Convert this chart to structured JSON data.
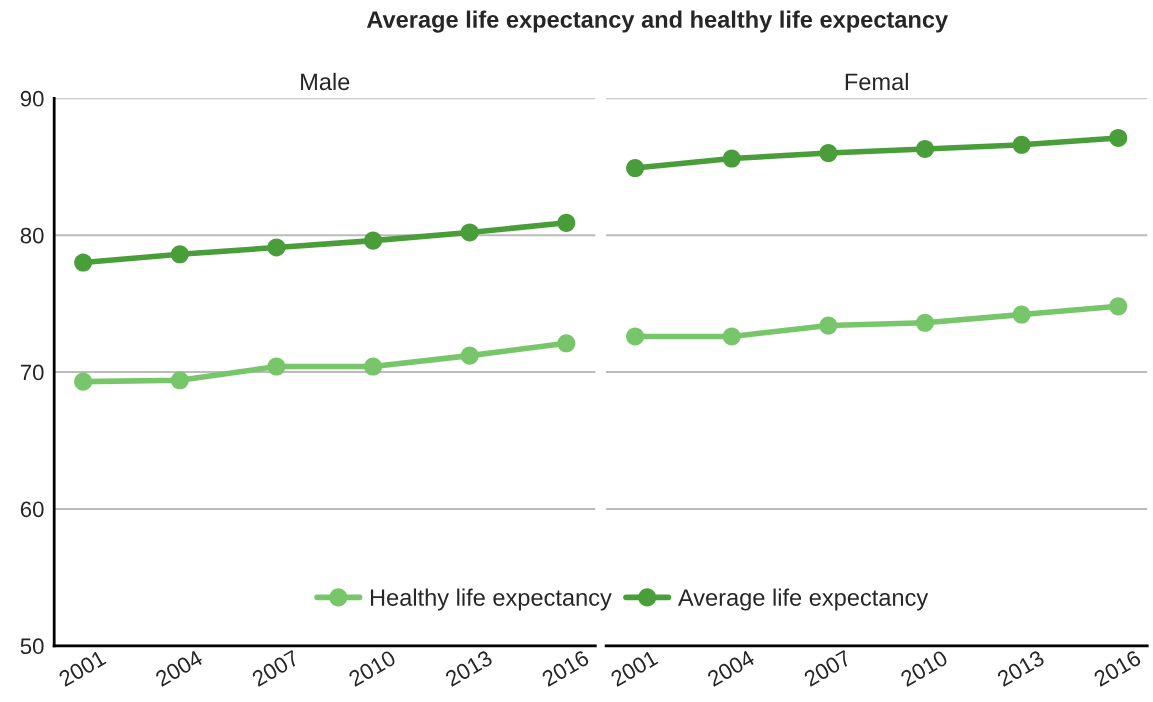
{
  "chart_data": [
    {
      "type": "line",
      "title": "Average life expectancy and healthy life expectancy",
      "subtitle": "Male",
      "categories": [
        "2001",
        "2004",
        "2007",
        "2010",
        "2013",
        "2016"
      ],
      "series": [
        {
          "name": "Healthy life expectancy",
          "color": "#77c66a",
          "values": [
            69.3,
            69.4,
            70.4,
            70.4,
            71.2,
            72.1
          ]
        },
        {
          "name": "Average life expectancy",
          "color": "#4a9e3a",
          "values": [
            78.0,
            78.6,
            79.1,
            79.6,
            80.2,
            80.9
          ]
        }
      ],
      "ylim": [
        50,
        90
      ],
      "yticks": [
        50,
        60,
        70,
        80,
        90
      ],
      "grid": "y",
      "legend": "bottom",
      "marker": "circle",
      "line_style": "solid"
    },
    {
      "type": "line",
      "subtitle": "Femal",
      "categories": [
        "2001",
        "2004",
        "2007",
        "2010",
        "2013",
        "2016"
      ],
      "series": [
        {
          "color": "#77c66a",
          "values": [
            72.6,
            72.6,
            73.4,
            73.6,
            74.2,
            74.8
          ]
        },
        {
          "color": "#4a9e3a",
          "values": [
            84.9,
            85.6,
            86.0,
            86.3,
            86.6,
            87.1
          ]
        }
      ],
      "ylim": [
        50,
        90
      ],
      "yticks": [
        50,
        60,
        70,
        80,
        90
      ],
      "grid": "y",
      "tick_labels": "x",
      "marker": "circle",
      "line_style": "solid"
    }
  ]
}
